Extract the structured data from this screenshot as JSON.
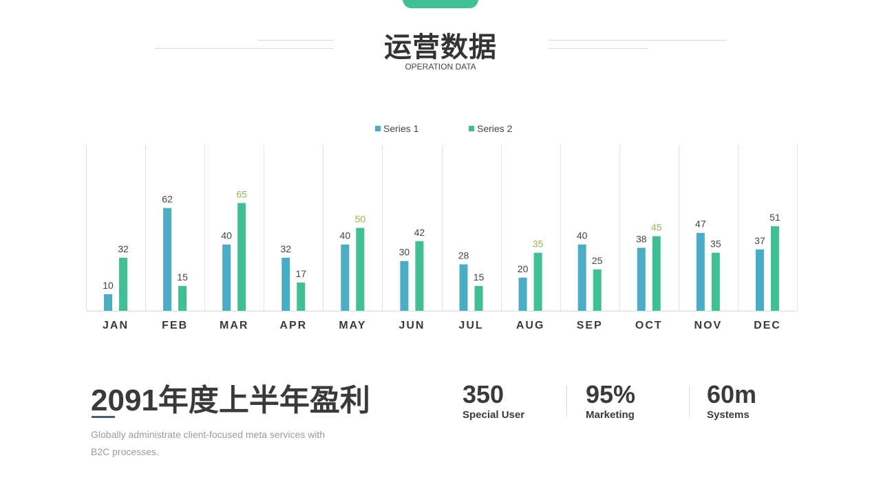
{
  "header": {
    "title": "运营数据",
    "subtitle": "OPERATION DATA"
  },
  "colors": {
    "series1": "#4bacc6",
    "series2": "#3fbf93",
    "label_highlight": "#8fbf4a"
  },
  "chart_data": {
    "type": "bar",
    "categories": [
      "JAN",
      "FEB",
      "MAR",
      "APR",
      "MAY",
      "JUN",
      "JUL",
      "AUG",
      "SEP",
      "OCT",
      "NOV",
      "DEC"
    ],
    "series": [
      {
        "name": "Series 1",
        "values": [
          10,
          62,
          40,
          32,
          40,
          30,
          28,
          20,
          40,
          38,
          47,
          37
        ]
      },
      {
        "name": "Series 2",
        "values": [
          32,
          15,
          65,
          17,
          50,
          42,
          15,
          35,
          25,
          45,
          35,
          51
        ]
      }
    ],
    "highlighted_labels": {
      "series": 2,
      "categories": [
        "MAR",
        "MAY",
        "AUG",
        "OCT"
      ]
    },
    "ylim": [
      0,
      100
    ],
    "grid": "vertical",
    "legend_position": "top-center"
  },
  "summary": {
    "title": "2091年度上半年盈利",
    "description": "Globally administrate client-focused meta services with B2C processes."
  },
  "stats": [
    {
      "value": "350",
      "label": "Special User"
    },
    {
      "value": "95%",
      "label": "Marketing"
    },
    {
      "value": "60m",
      "label": "Systems"
    }
  ]
}
